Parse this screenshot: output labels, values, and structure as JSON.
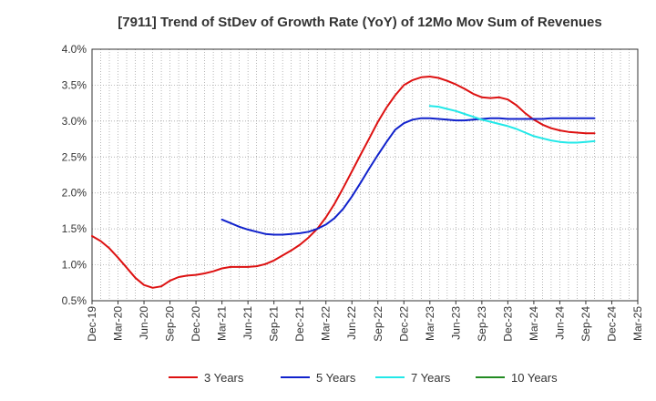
{
  "chart_data": {
    "type": "line",
    "title": "[7911]  Trend of StDev of Growth Rate (YoY) of 12Mo Mov Sum of Revenues",
    "xlabel": "",
    "ylabel": "",
    "ylim": [
      0.5,
      4.0
    ],
    "y_ticks": [
      "0.5%",
      "1.0%",
      "1.5%",
      "2.0%",
      "2.5%",
      "3.0%",
      "3.5%",
      "4.0%"
    ],
    "y_tick_values": [
      0.5,
      1.0,
      1.5,
      2.0,
      2.5,
      3.0,
      3.5,
      4.0
    ],
    "x_ticks": [
      "Dec-19",
      "Mar-20",
      "Jun-20",
      "Sep-20",
      "Dec-20",
      "Mar-21",
      "Jun-21",
      "Sep-21",
      "Dec-21",
      "Mar-22",
      "Jun-22",
      "Sep-22",
      "Dec-22",
      "Mar-23",
      "Jun-23",
      "Sep-23",
      "Dec-23",
      "Mar-24",
      "Jun-24",
      "Sep-24",
      "Dec-24",
      "Mar-25"
    ],
    "x_range_months": [
      0,
      63
    ],
    "grid": true,
    "legend_position": "bottom",
    "series": [
      {
        "name": "3 Years",
        "color": "#dd1111",
        "start_month": 0,
        "values": [
          1.4,
          1.33,
          1.23,
          1.1,
          0.96,
          0.82,
          0.72,
          0.68,
          0.7,
          0.78,
          0.83,
          0.85,
          0.86,
          0.88,
          0.91,
          0.95,
          0.97,
          0.97,
          0.97,
          0.98,
          1.01,
          1.06,
          1.13,
          1.2,
          1.28,
          1.38,
          1.5,
          1.66,
          1.85,
          2.07,
          2.3,
          2.53,
          2.76,
          2.99,
          3.19,
          3.36,
          3.5,
          3.57,
          3.61,
          3.62,
          3.6,
          3.56,
          3.51,
          3.45,
          3.38,
          3.33,
          3.32,
          3.33,
          3.3,
          3.22,
          3.11,
          3.02,
          2.95,
          2.9,
          2.87,
          2.85,
          2.84,
          2.83,
          2.83
        ]
      },
      {
        "name": "5 Years",
        "color": "#1122cc",
        "start_month": 15,
        "values": [
          1.63,
          1.58,
          1.53,
          1.49,
          1.46,
          1.43,
          1.42,
          1.42,
          1.43,
          1.44,
          1.46,
          1.5,
          1.56,
          1.65,
          1.78,
          1.95,
          2.14,
          2.34,
          2.53,
          2.71,
          2.88,
          2.97,
          3.02,
          3.04,
          3.04,
          3.03,
          3.02,
          3.01,
          3.01,
          3.02,
          3.03,
          3.04,
          3.04,
          3.03,
          3.03,
          3.03,
          3.03,
          3.03,
          3.04,
          3.04,
          3.04,
          3.04,
          3.04,
          3.04
        ]
      },
      {
        "name": "7 Years",
        "color": "#22e8e8",
        "start_month": 39,
        "values": [
          3.21,
          3.2,
          3.17,
          3.14,
          3.1,
          3.06,
          3.02,
          2.99,
          2.96,
          2.93,
          2.89,
          2.84,
          2.79,
          2.76,
          2.73,
          2.71,
          2.7,
          2.7,
          2.71,
          2.72
        ]
      },
      {
        "name": "10 Years",
        "color": "#228b22",
        "start_month": 0,
        "values": []
      }
    ]
  }
}
